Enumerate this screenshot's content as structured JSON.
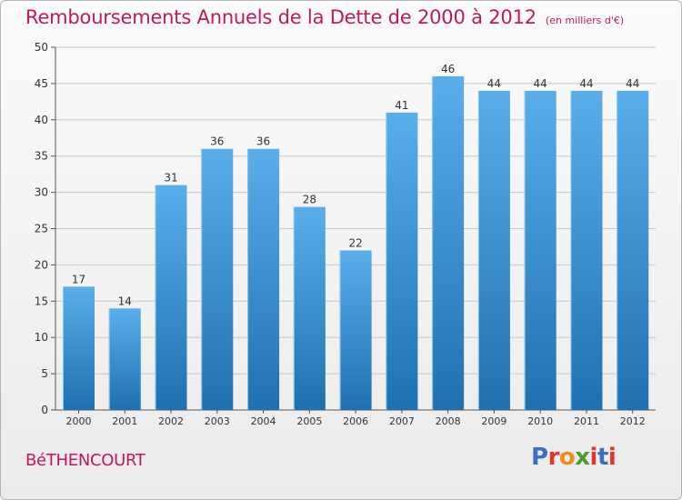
{
  "title": "Remboursements Annuels de la Dette de 2000 à 2012",
  "subtitle": "(en milliers d'€)",
  "town": "BéTHENCOURT",
  "logo": {
    "text": "Proxiti",
    "letter_colors": [
      "#3a6fc4",
      "#e8322e",
      "#f28c1e",
      "#4a9c2f",
      "#e8322e",
      "#3a6fc4",
      "#e8322e"
    ]
  },
  "colors": {
    "title": "#c2185b",
    "bar_top": "#5aaeea",
    "bar_bottom": "#1f70b0",
    "grid": "#c8c8c8",
    "axis_text": "#333333"
  },
  "chart_data": {
    "type": "bar",
    "categories": [
      "2000",
      "2001",
      "2002",
      "2003",
      "2004",
      "2005",
      "2006",
      "2007",
      "2008",
      "2009",
      "2010",
      "2011",
      "2012"
    ],
    "values": [
      17,
      14,
      31,
      36,
      36,
      28,
      22,
      41,
      46,
      44,
      44,
      44,
      44
    ],
    "data_labels": [
      "17",
      "14",
      "31",
      "36",
      "36",
      "28",
      "22",
      "41",
      "46",
      "44",
      "44",
      "44",
      "44"
    ],
    "y_ticks": [
      "0",
      "5",
      "10",
      "15",
      "20",
      "25",
      "30",
      "35",
      "40",
      "45",
      "50"
    ],
    "ylim": [
      0,
      50
    ],
    "grid": true,
    "title": "Remboursements Annuels de la Dette de 2000 à 2012",
    "xlabel": "",
    "ylabel": ""
  }
}
